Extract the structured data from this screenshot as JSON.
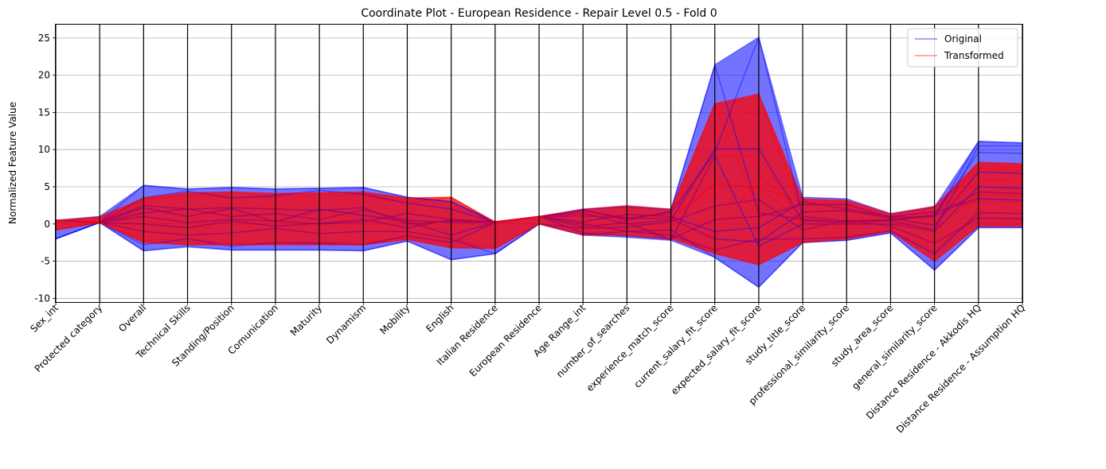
{
  "chart_data": {
    "type": "line",
    "title": "Coordinate Plot - European Residence - Repair Level 0.5 - Fold 0",
    "xlabel": "",
    "ylabel": "Normalized Feature Value",
    "ylim": [
      -10.5,
      26.8
    ],
    "yticks": [
      -10,
      -5,
      0,
      5,
      10,
      15,
      20,
      25
    ],
    "grid": "horizontal",
    "legend_position": "top-right",
    "categories": [
      "Sex_int",
      "Protected category",
      "Overall",
      "Technical Skills",
      "Standing/Position",
      "Comunication",
      "Maturity",
      "Dynamism",
      "Mobility",
      "English",
      "Italian Residence",
      "European Residence",
      "Age Range_int",
      "number_of_searches",
      "experience_match_score",
      "current_salary_fit_score",
      "expected_salary_fit_score",
      "study_title_score",
      "professional_similarity_score",
      "study_area_score",
      "general_similarity_score",
      "Distance Residence - Akkodis HQ",
      "Distance Residence - Assumption HQ"
    ],
    "series": [
      {
        "name": "Original",
        "color": "#0000ff",
        "lower": [
          -2.0,
          0.2,
          -3.6,
          -3.0,
          -3.5,
          -3.5,
          -3.5,
          -3.6,
          -2.3,
          -4.8,
          -4.0,
          0.0,
          -1.5,
          -1.8,
          -2.2,
          -4.5,
          -8.5,
          -2.5,
          -2.2,
          -1.2,
          -6.2,
          -0.5,
          -0.5
        ],
        "upper": [
          0.5,
          1.0,
          5.2,
          4.7,
          4.9,
          4.7,
          4.8,
          4.9,
          3.6,
          3.0,
          0.3,
          1.0,
          2.0,
          2.3,
          2.0,
          21.4,
          25.1,
          3.6,
          3.4,
          1.4,
          2.3,
          11.1,
          10.9
        ],
        "sample_lines": [
          [
            0.5,
            0.2,
            2.2,
            1.0,
            2.1,
            0.3,
            2.0,
            1.2,
            0.3,
            -1.5,
            0.2,
            1.0,
            1.9,
            0.5,
            1.7,
            21.4,
            1.5,
            0.6,
            0.2,
            0.5,
            1.2,
            9.6,
            9.5
          ],
          [
            0.5,
            0.2,
            1.5,
            2.0,
            1.0,
            1.4,
            0.6,
            1.9,
            0.5,
            0.2,
            0.2,
            1.0,
            1.8,
            0.8,
            1.5,
            9.6,
            25.1,
            1.0,
            0.4,
            0.6,
            1.0,
            11.1,
            10.9
          ],
          [
            -2.0,
            0.2,
            -3.6,
            -3.1,
            -3.5,
            -3.5,
            -3.5,
            -3.6,
            -2.3,
            -4.8,
            -4.0,
            0.0,
            -1.5,
            -1.0,
            -0.8,
            -4.5,
            -8.5,
            -2.5,
            -2.2,
            -1.2,
            -6.2,
            -0.5,
            -0.5
          ],
          [
            -2.0,
            0.2,
            5.2,
            4.7,
            4.9,
            4.7,
            4.8,
            4.9,
            3.6,
            3.0,
            0.2,
            1.0,
            1.5,
            0.0,
            0.5,
            10.1,
            10.1,
            0.4,
            0.3,
            0.4,
            -0.8,
            10.5,
            10.5
          ],
          [
            0.5,
            0.2,
            0.0,
            -0.5,
            0.4,
            -0.3,
            0.1,
            0.6,
            -0.5,
            0.6,
            0.2,
            1.0,
            -0.4,
            0.2,
            -2.2,
            9.2,
            -3.0,
            0.0,
            0.0,
            0.0,
            -1.0,
            5.0,
            4.8
          ],
          [
            -2.0,
            0.2,
            2.5,
            2.0,
            2.2,
            2.0,
            1.8,
            2.2,
            0.0,
            0.4,
            0.3,
            1.0,
            0.3,
            1.3,
            1.0,
            -1.0,
            -0.5,
            3.0,
            2.0,
            1.0,
            1.6,
            3.4,
            3.2
          ],
          [
            0.5,
            0.2,
            -1.0,
            -1.5,
            -1.2,
            -0.6,
            -1.3,
            -1.0,
            -1.0,
            -2.0,
            -4.0,
            0.0,
            -0.6,
            -0.4,
            0.3,
            2.4,
            3.3,
            -0.8,
            0.5,
            -0.3,
            -2.6,
            0.8,
            0.7
          ],
          [
            0.5,
            0.2,
            1.0,
            0.2,
            0.6,
            0.4,
            0.0,
            0.3,
            1.4,
            0.6,
            0.3,
            1.0,
            1.1,
            0.8,
            0.7,
            -2.0,
            -2.4,
            1.6,
            1.8,
            0.8,
            -0.2,
            7.0,
            6.8
          ],
          [
            -2.0,
            0.2,
            -2.8,
            -2.0,
            -3.0,
            -2.5,
            -2.6,
            -2.8,
            -1.6,
            -2.5,
            0.2,
            1.0,
            0.0,
            -1.0,
            -1.5,
            -3.5,
            -2.0,
            -2.0,
            -1.8,
            -0.9,
            -4.0,
            1.5,
            1.4
          ],
          [
            0.5,
            0.2,
            3.5,
            4.4,
            3.5,
            3.8,
            4.5,
            4.0,
            2.8,
            2.0,
            0.2,
            1.0,
            -1.2,
            -1.6,
            -2.0,
            0.6,
            1.0,
            2.6,
            2.6,
            0.9,
            1.0,
            4.3,
            4.1
          ]
        ]
      },
      {
        "name": "Transformed",
        "color": "#ff0000",
        "lower": [
          -0.8,
          0.2,
          -2.5,
          -2.8,
          -2.8,
          -2.8,
          -2.8,
          -2.8,
          -2.1,
          -3.2,
          -3.3,
          0.0,
          -1.5,
          -1.5,
          -2.0,
          -4.0,
          -5.5,
          -2.5,
          -2.0,
          -1.0,
          -5.0,
          -0.3,
          -0.3
        ],
        "upper": [
          0.5,
          1.0,
          3.5,
          4.2,
          4.3,
          4.1,
          4.2,
          4.3,
          3.5,
          3.6,
          0.3,
          1.0,
          2.0,
          2.5,
          2.0,
          16.2,
          17.5,
          3.4,
          3.2,
          1.4,
          2.4,
          8.3,
          8.1
        ],
        "sample_lines": [
          [
            0.5,
            0.2,
            2.0,
            1.0,
            2.0,
            0.3,
            1.6,
            1.0,
            0.3,
            -1.0,
            0.2,
            1.0,
            1.9,
            0.5,
            1.7,
            16.2,
            1.5,
            0.6,
            0.2,
            0.5,
            1.0,
            7.8,
            7.6
          ],
          [
            0.5,
            0.2,
            1.5,
            2.0,
            1.0,
            1.4,
            0.6,
            1.9,
            0.5,
            0.2,
            0.2,
            1.0,
            1.8,
            0.8,
            1.5,
            9.3,
            17.5,
            1.0,
            0.4,
            0.6,
            1.0,
            8.3,
            8.1
          ],
          [
            -0.8,
            0.2,
            -2.5,
            -2.8,
            -2.8,
            -2.8,
            -2.8,
            -2.8,
            -2.1,
            -3.2,
            -3.3,
            0.0,
            -1.5,
            -1.0,
            -0.8,
            -4.0,
            -5.5,
            -2.5,
            -2.0,
            -1.0,
            -5.0,
            -0.3,
            -0.3
          ],
          [
            -0.8,
            0.2,
            3.5,
            4.2,
            4.3,
            4.1,
            4.2,
            4.3,
            3.5,
            3.6,
            0.2,
            1.0,
            1.5,
            0.0,
            0.5,
            5.4,
            4.8,
            0.4,
            0.3,
            0.4,
            -0.8,
            7.5,
            7.2
          ],
          [
            0.5,
            0.2,
            0.0,
            -0.5,
            0.4,
            -0.3,
            0.1,
            0.6,
            -0.5,
            0.6,
            0.2,
            1.0,
            -0.4,
            0.2,
            -2.0,
            9.2,
            9.1,
            0.0,
            0.0,
            0.0,
            -1.0,
            4.0,
            3.8
          ],
          [
            -0.8,
            0.2,
            2.5,
            2.0,
            2.2,
            2.0,
            1.8,
            2.2,
            0.0,
            0.4,
            0.3,
            1.0,
            0.3,
            1.3,
            1.0,
            5.4,
            4.9,
            3.0,
            2.0,
            1.0,
            1.6,
            3.0,
            2.9
          ],
          [
            0.5,
            0.2,
            -1.0,
            -1.5,
            -1.2,
            -0.6,
            -1.3,
            -1.0,
            -1.0,
            -2.0,
            -3.3,
            0.0,
            -0.6,
            -0.4,
            0.3,
            2.4,
            3.3,
            -0.8,
            0.5,
            -0.3,
            -2.6,
            0.8,
            0.7
          ],
          [
            0.5,
            0.2,
            1.0,
            0.2,
            0.6,
            0.4,
            0.0,
            0.3,
            1.4,
            0.6,
            0.3,
            1.0,
            1.1,
            0.8,
            0.7,
            -2.0,
            6.6,
            1.6,
            1.8,
            0.8,
            -0.2,
            6.0,
            5.8
          ],
          [
            -0.8,
            0.2,
            -2.2,
            -2.0,
            -2.6,
            -2.5,
            -2.4,
            -2.6,
            -1.6,
            -2.5,
            0.2,
            1.0,
            0.0,
            -1.0,
            -1.5,
            -3.5,
            -2.0,
            -2.0,
            -1.8,
            -0.9,
            -3.5,
            1.5,
            1.4
          ],
          [
            0.5,
            0.2,
            3.2,
            3.8,
            3.5,
            3.6,
            3.9,
            3.7,
            2.8,
            3.6,
            0.2,
            1.0,
            -1.2,
            -1.6,
            -2.0,
            0.6,
            1.0,
            2.6,
            2.6,
            0.9,
            1.0,
            4.3,
            4.1
          ]
        ]
      }
    ]
  }
}
